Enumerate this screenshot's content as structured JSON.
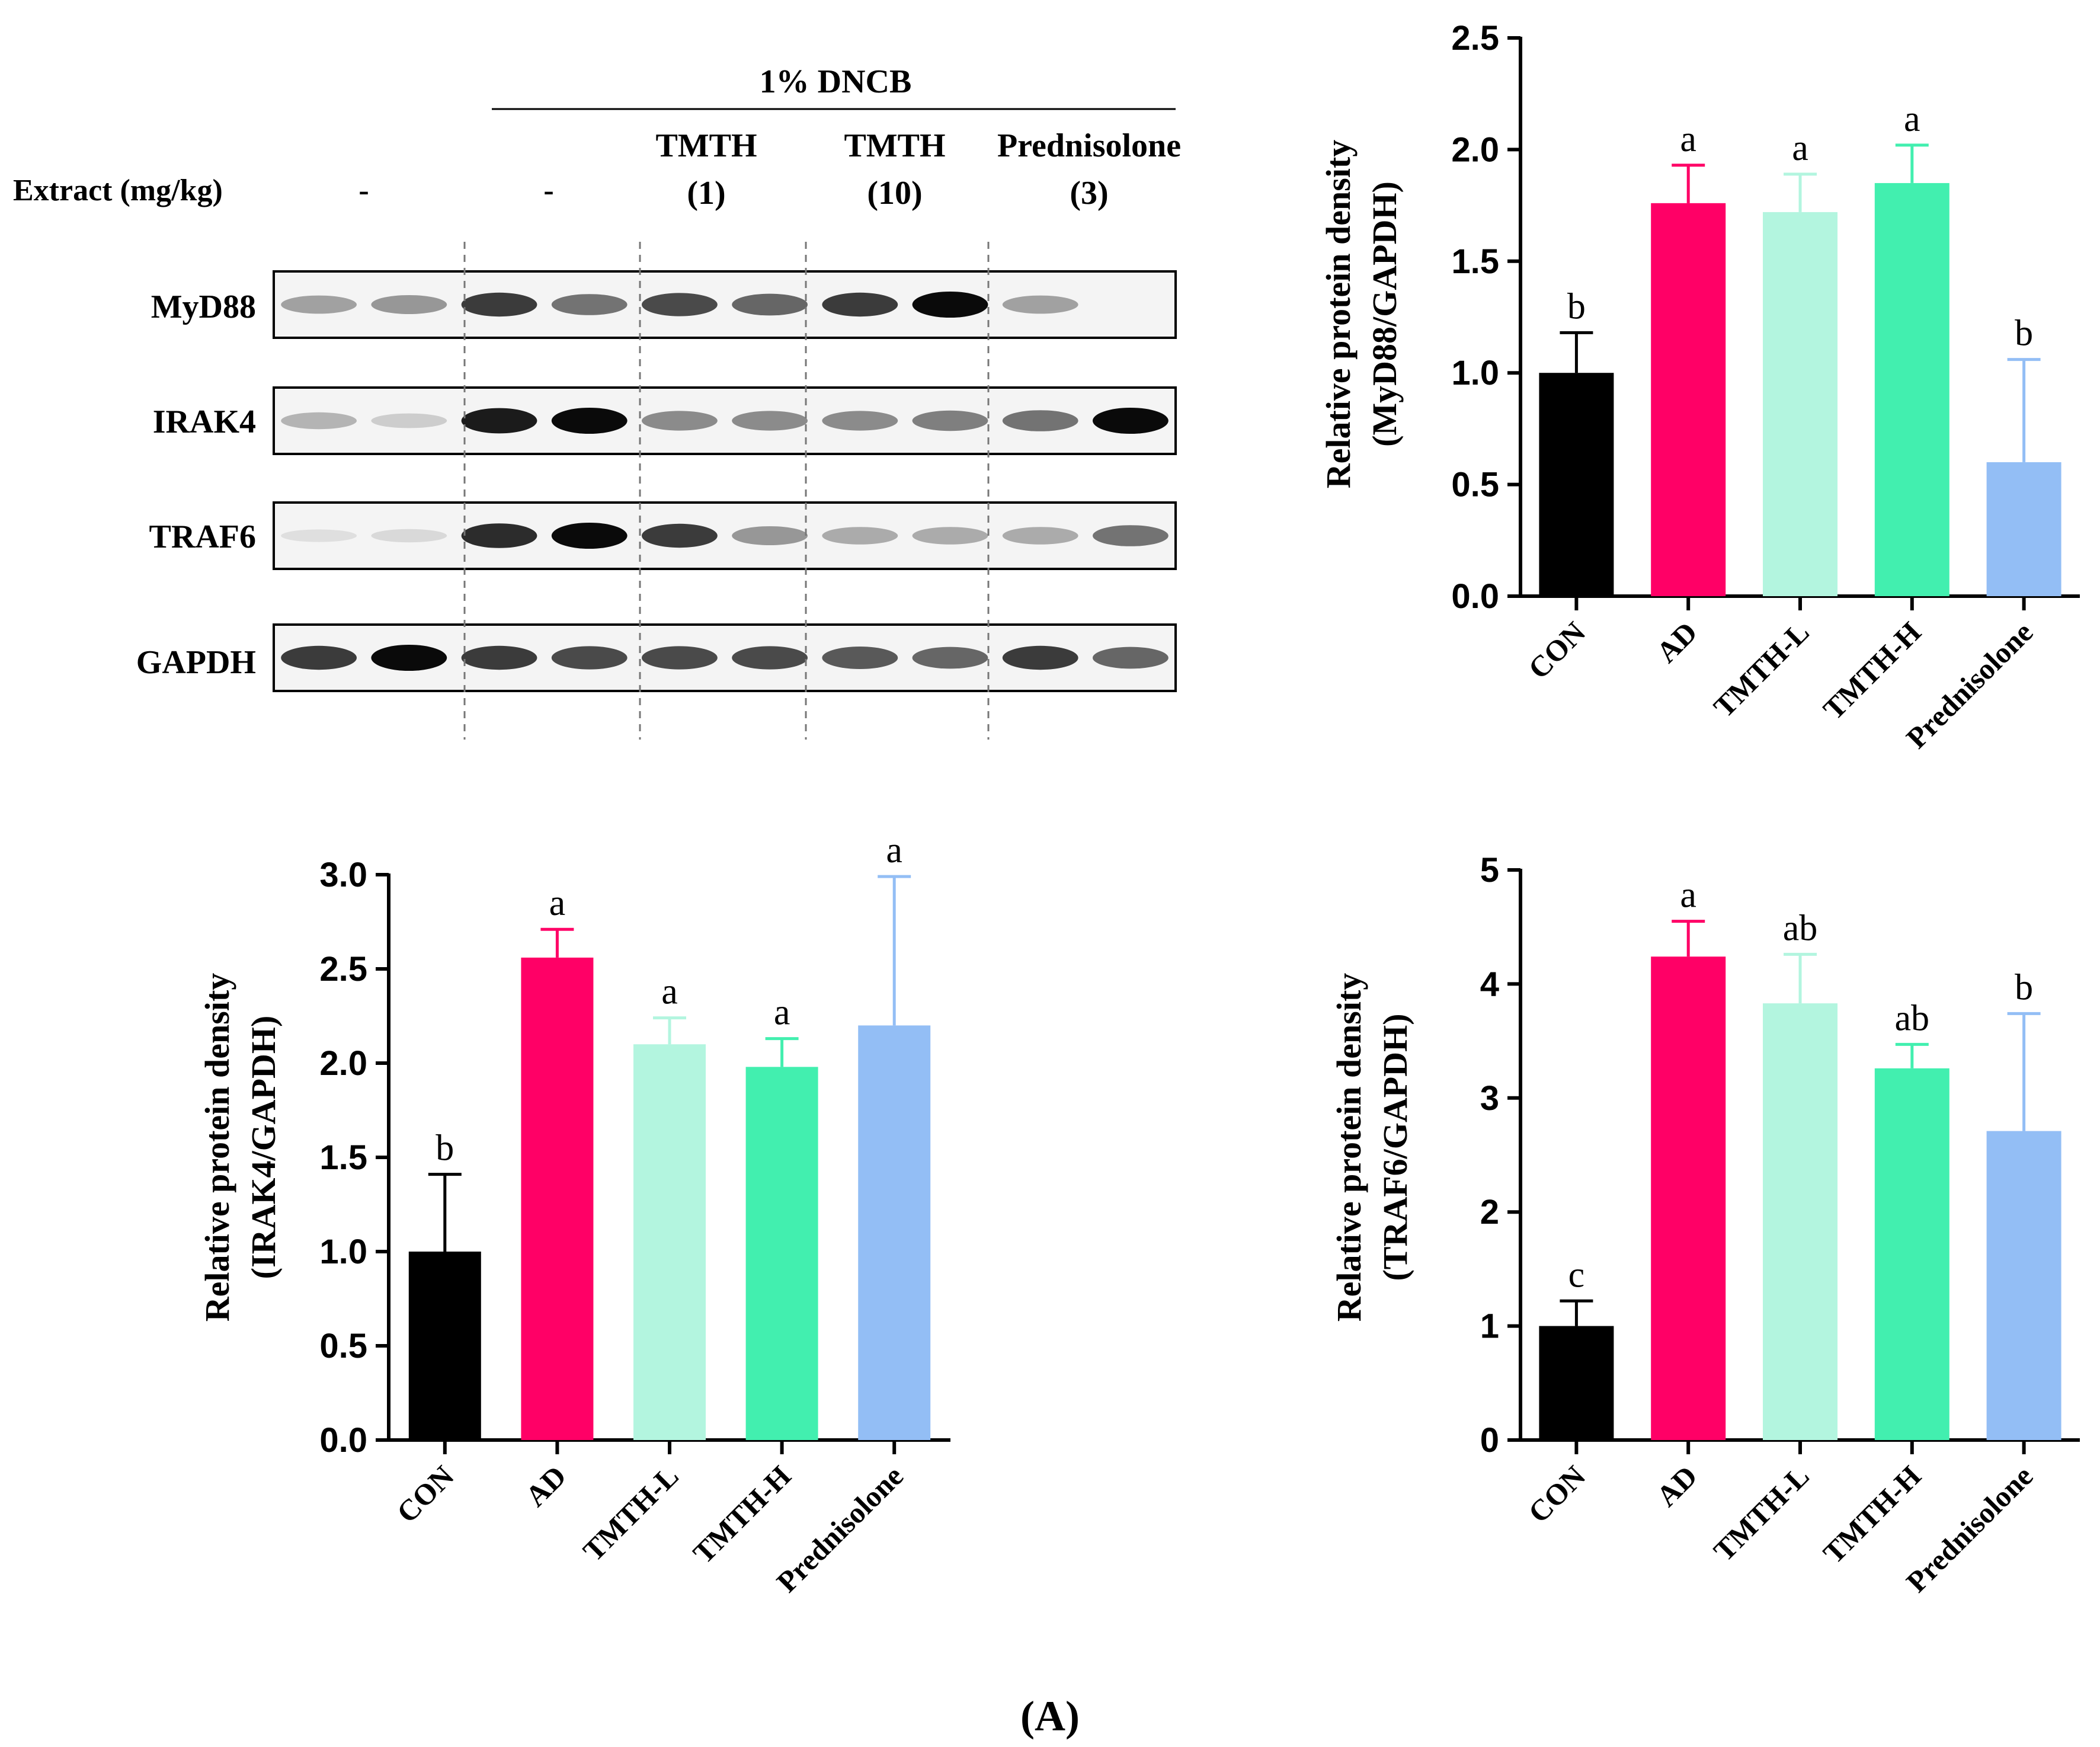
{
  "figure_label": "(A)",
  "colors": {
    "black": "#000000",
    "magenta": "#ff0066",
    "mint": "#b3f5df",
    "green": "#42efaf",
    "blue": "#93bef5"
  },
  "western_blot": {
    "header": "1% DNCB",
    "row_label": "Extract (mg/kg)",
    "groups": [
      {
        "name": "",
        "dose": "-"
      },
      {
        "name": "",
        "dose": "-"
      },
      {
        "name": "TMTH",
        "dose": "(1)"
      },
      {
        "name": "TMTH",
        "dose": "(10)"
      },
      {
        "name": "Prednisolone",
        "dose": "(3)"
      }
    ],
    "proteins": [
      "MyD88",
      "IRAK4",
      "TRAF6",
      "GAPDH"
    ],
    "band_intensity": [
      [
        0.45,
        0.5,
        0.85,
        0.65,
        0.8,
        0.7,
        0.85,
        1.0,
        0.45,
        0.0
      ],
      [
        0.35,
        0.2,
        0.95,
        1.0,
        0.55,
        0.55,
        0.55,
        0.6,
        0.65,
        1.0
      ],
      [
        0.05,
        0.1,
        0.9,
        1.0,
        0.85,
        0.5,
        0.4,
        0.4,
        0.4,
        0.65
      ],
      [
        0.85,
        1.0,
        0.85,
        0.8,
        0.8,
        0.8,
        0.75,
        0.7,
        0.85,
        0.7
      ]
    ]
  },
  "chart_data": [
    {
      "id": "myd88",
      "type": "bar",
      "ylabel_line1": "Relative protein density",
      "ylabel_line2": "(MyD88/GAPDH)",
      "categories": [
        "CON",
        "AD",
        "TMTH-L",
        "TMTH-H",
        "Prednisolone"
      ],
      "values": [
        1.0,
        1.76,
        1.72,
        1.85,
        0.6
      ],
      "errors": [
        0.18,
        0.17,
        0.17,
        0.17,
        0.46
      ],
      "letters": [
        "b",
        "a",
        "a",
        "a",
        "b"
      ],
      "ylim": [
        0,
        2.5
      ],
      "ticks": [
        "0.0",
        "0.5",
        "1.0",
        "1.5",
        "2.0",
        "2.5"
      ]
    },
    {
      "id": "irak4",
      "type": "bar",
      "ylabel_line1": "Relative protein density",
      "ylabel_line2": "(IRAK4/GAPDH)",
      "categories": [
        "CON",
        "AD",
        "TMTH-L",
        "TMTH-H",
        "Prednisolone"
      ],
      "values": [
        1.0,
        2.56,
        2.1,
        1.98,
        2.2
      ],
      "errors": [
        0.41,
        0.15,
        0.14,
        0.15,
        0.79
      ],
      "letters": [
        "b",
        "a",
        "a",
        "a",
        "a"
      ],
      "ylim": [
        0,
        3.0
      ],
      "ticks": [
        "0.0",
        "0.5",
        "1.0",
        "1.5",
        "2.0",
        "2.5",
        "3.0"
      ]
    },
    {
      "id": "traf6",
      "type": "bar",
      "ylabel_line1": "Relative protein density",
      "ylabel_line2": "(TRAF6/GAPDH)",
      "categories": [
        "CON",
        "AD",
        "TMTH-L",
        "TMTH-H",
        "Prednisolone"
      ],
      "values": [
        1.0,
        4.24,
        3.83,
        3.26,
        2.71
      ],
      "errors": [
        0.22,
        0.31,
        0.43,
        0.21,
        1.03
      ],
      "letters": [
        "c",
        "a",
        "ab",
        "ab",
        "b"
      ],
      "ylim": [
        0,
        5
      ],
      "ticks": [
        "0",
        "1",
        "2",
        "3",
        "4",
        "5"
      ]
    }
  ]
}
